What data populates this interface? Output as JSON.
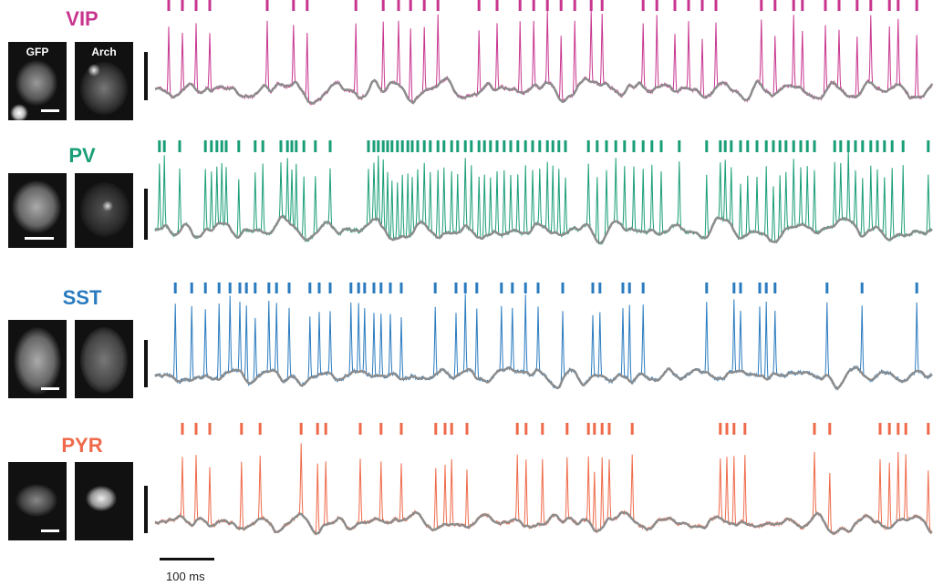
{
  "scale_bar": {
    "time_label": "100 ms"
  },
  "image_labels": {
    "gfp": "GFP",
    "arch": "Arch"
  },
  "trace_overlay_color": "#8c8c8c",
  "time_range_ms": [
    0,
    1420
  ],
  "panels": [
    {
      "name": "VIP",
      "color": "#c8358f",
      "spike_times_ms": [
        25,
        50,
        75,
        100,
        205,
        253,
        278,
        367,
        417,
        445,
        467,
        492,
        517,
        592,
        625,
        667,
        692,
        717,
        742,
        767,
        797,
        817,
        892,
        917,
        950,
        975,
        1000,
        1025,
        1108,
        1133,
        1167,
        1183,
        1225,
        1250,
        1283,
        1308,
        1342,
        1358,
        1392
      ]
    },
    {
      "name": "PV",
      "color": "#1a9e77",
      "spike_times_ms": [
        8,
        17,
        45,
        92,
        103,
        113,
        122,
        130,
        153,
        183,
        197,
        230,
        242,
        250,
        258,
        272,
        293,
        320,
        390,
        400,
        408,
        417,
        425,
        433,
        443,
        452,
        462,
        470,
        480,
        492,
        503,
        517,
        528,
        542,
        553,
        567,
        578,
        592,
        602,
        613,
        625,
        638,
        650,
        663,
        677,
        690,
        703,
        717,
        727,
        738,
        750,
        792,
        808,
        825,
        842,
        858,
        875,
        892,
        908,
        925,
        958,
        1008,
        1033,
        1042,
        1053,
        1070,
        1083,
        1100,
        1117,
        1130,
        1142,
        1153,
        1167,
        1180,
        1192,
        1205,
        1242,
        1253,
        1267,
        1280,
        1293,
        1308,
        1320,
        1333,
        1347,
        1367,
        1413
      ]
    },
    {
      "name": "SST",
      "color": "#2a7bbf",
      "spike_times_ms": [
        37,
        67,
        92,
        117,
        137,
        155,
        167,
        183,
        208,
        222,
        245,
        283,
        300,
        320,
        358,
        372,
        383,
        400,
        413,
        430,
        450,
        512,
        550,
        567,
        588,
        633,
        653,
        677,
        700,
        745,
        800,
        813,
        855,
        867,
        892,
        1008,
        1058,
        1070,
        1105,
        1117,
        1133,
        1228,
        1292,
        1392
      ]
    },
    {
      "name": "PYR",
      "color": "#ef6a4a",
      "spike_times_ms": [
        50,
        75,
        100,
        158,
        192,
        267,
        297,
        312,
        375,
        413,
        450,
        513,
        530,
        542,
        570,
        662,
        678,
        708,
        753,
        792,
        803,
        817,
        830,
        872,
        1033,
        1045,
        1058,
        1078,
        1205,
        1233,
        1325,
        1342,
        1358,
        1372,
        1413
      ]
    }
  ]
}
